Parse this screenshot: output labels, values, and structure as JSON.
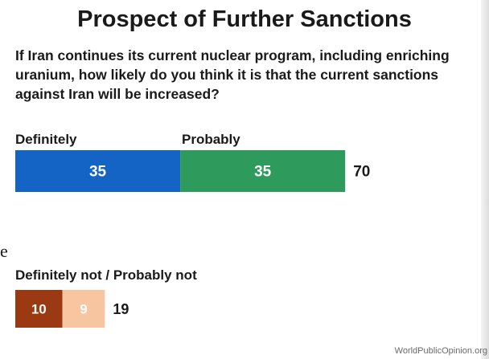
{
  "chart_title": "Prospect of Further Sanctions",
  "question": "If Iran continues its current nuclear program, including enriching uranium, how likely do you think it is that the current sanctions against Iran will be increased?",
  "stray_text": "e",
  "source": "WorldPublicOpinion.org",
  "chart_data": [
    {
      "type": "bar",
      "orientation": "horizontal",
      "stacked": true,
      "group_label": "",
      "series": [
        {
          "name": "Definitely",
          "value": 35,
          "color": "#1464c6"
        },
        {
          "name": "Probably",
          "value": 35,
          "color": "#2e9a5c"
        }
      ],
      "total": 70,
      "legend_placement": "above"
    },
    {
      "type": "bar",
      "orientation": "horizontal",
      "stacked": true,
      "group_label": "Definitely not / Probably not",
      "series": [
        {
          "name": "Definitely not",
          "value": 10,
          "color": "#9b3a12"
        },
        {
          "name": "Probably not",
          "value": 9,
          "color": "#f7c6a0"
        }
      ],
      "total": 19,
      "legend_placement": "above"
    }
  ]
}
